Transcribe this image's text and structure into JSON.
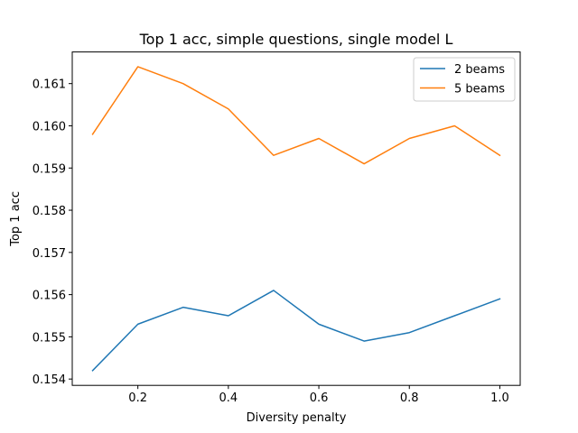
{
  "chart_data": {
    "type": "line",
    "title": "Top 1 acc, simple questions, single model L",
    "xlabel": "Diversity penalty",
    "ylabel": "Top 1 acc",
    "xlim": [
      0.055,
      1.045
    ],
    "ylim": [
      0.15385,
      0.16175
    ],
    "xticks": [
      0.2,
      0.4,
      0.6,
      0.8,
      1.0
    ],
    "xtick_labels": [
      "0.2",
      "0.4",
      "0.6",
      "0.8",
      "1.0"
    ],
    "yticks": [
      0.154,
      0.155,
      0.156,
      0.157,
      0.158,
      0.159,
      0.16,
      0.161
    ],
    "ytick_labels": [
      "0.154",
      "0.155",
      "0.156",
      "0.157",
      "0.158",
      "0.159",
      "0.160",
      "0.161"
    ],
    "grid": false,
    "legend_position": "top-right",
    "x": [
      0.1,
      0.2,
      0.3,
      0.4,
      0.5,
      0.6,
      0.7,
      0.8,
      0.9,
      1.0
    ],
    "series": [
      {
        "name": "2 beams",
        "color": "#1f77b4",
        "values": [
          0.1542,
          0.1553,
          0.1557,
          0.1555,
          0.1561,
          0.1553,
          0.1549,
          0.1551,
          0.1555,
          0.1559
        ]
      },
      {
        "name": "5 beams",
        "color": "#ff7f0e",
        "values": [
          0.1598,
          0.1614,
          0.161,
          0.1604,
          0.1593,
          0.1597,
          0.1591,
          0.1597,
          0.16,
          0.1593
        ]
      }
    ]
  }
}
